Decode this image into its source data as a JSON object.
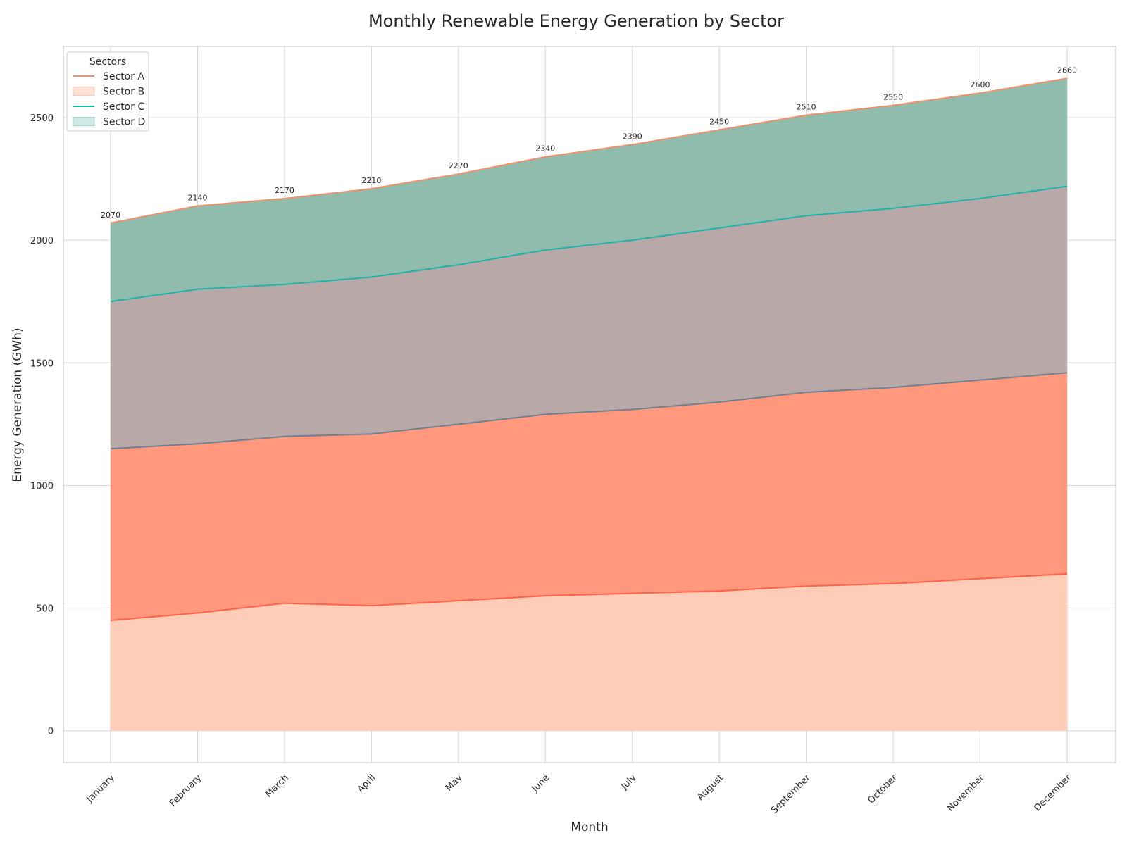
{
  "chart_data": {
    "type": "area",
    "stacked": true,
    "title": "Monthly Renewable Energy Generation by Sector",
    "xlabel": "Month",
    "ylabel": "Energy Generation (GWh)",
    "categories": [
      "January",
      "February",
      "March",
      "April",
      "May",
      "June",
      "July",
      "August",
      "September",
      "October",
      "November",
      "December"
    ],
    "series": [
      {
        "name": "Sector A",
        "values": [
          450,
          480,
          520,
          510,
          530,
          550,
          560,
          570,
          590,
          600,
          620,
          640
        ],
        "color": "#ffccb8",
        "line_color": "#ff6347"
      },
      {
        "name": "Sector B",
        "values": [
          700,
          690,
          680,
          700,
          720,
          740,
          750,
          770,
          790,
          800,
          810,
          820
        ],
        "color": "#ff987c",
        "line_color": "#708090"
      },
      {
        "name": "Sector C",
        "values": [
          600,
          630,
          620,
          640,
          650,
          670,
          690,
          710,
          720,
          730,
          740,
          760
        ],
        "color": "#b8a8a8",
        "line_color": "#20b2aa"
      },
      {
        "name": "Sector D",
        "values": [
          320,
          340,
          350,
          360,
          370,
          380,
          390,
          400,
          410,
          420,
          430,
          440
        ],
        "color": "#8fbcad",
        "line_color": "#f0906a"
      }
    ],
    "totals": [
      2070,
      2140,
      2170,
      2210,
      2270,
      2340,
      2390,
      2450,
      2510,
      2550,
      2600,
      2660
    ],
    "ylim": [
      -130,
      2790
    ],
    "yticks": [
      0,
      500,
      1000,
      1500,
      2000,
      2500
    ],
    "grid": true,
    "legend": {
      "title": "Sectors",
      "placement": "top-left",
      "entries": [
        {
          "label": "Sector A",
          "kind": "line",
          "color": "#f0906a"
        },
        {
          "label": "Sector B",
          "kind": "patch",
          "color": "#ffe1d5",
          "edge": "#ffc8b4"
        },
        {
          "label": "Sector C",
          "kind": "line",
          "color": "#20b2aa"
        },
        {
          "label": "Sector D",
          "kind": "patch",
          "color": "#cfe9e6",
          "edge": "#9fd6d0"
        }
      ]
    }
  }
}
